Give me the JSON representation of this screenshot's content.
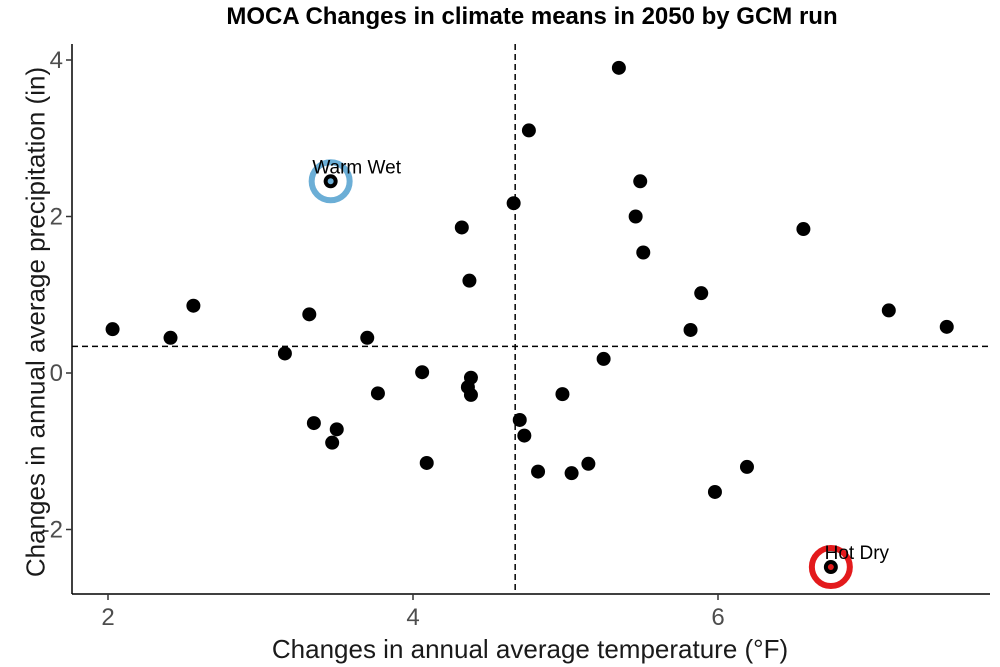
{
  "chart_data": {
    "type": "scatter",
    "title": "MOCA Changes in climate means in 2050 by GCM run",
    "xlabel": "Changes in annual average temperature (°F)",
    "ylabel": "Changes in annual average precipitation (in)",
    "xlim": [
      1.85,
      7.7
    ],
    "ylim": [
      -2.8,
      4.25
    ],
    "xticks": [
      2,
      4,
      6
    ],
    "yticks": [
      -2,
      0,
      2,
      4
    ],
    "grid": false,
    "reference_lines": {
      "x": 4.67,
      "y": 0.34
    },
    "point_color": "#000000",
    "points": [
      {
        "x": 2.03,
        "y": 0.56
      },
      {
        "x": 2.41,
        "y": 0.45
      },
      {
        "x": 2.56,
        "y": 0.86
      },
      {
        "x": 3.16,
        "y": 0.25
      },
      {
        "x": 3.32,
        "y": 0.75
      },
      {
        "x": 3.35,
        "y": -0.64
      },
      {
        "x": 3.47,
        "y": -0.89
      },
      {
        "x": 3.5,
        "y": -0.72
      },
      {
        "x": 3.46,
        "y": 2.45
      },
      {
        "x": 3.7,
        "y": 0.45
      },
      {
        "x": 3.77,
        "y": -0.26
      },
      {
        "x": 4.06,
        "y": 0.01
      },
      {
        "x": 4.09,
        "y": -1.15
      },
      {
        "x": 4.32,
        "y": 1.86
      },
      {
        "x": 4.36,
        "y": -0.18
      },
      {
        "x": 4.37,
        "y": 1.18
      },
      {
        "x": 4.38,
        "y": -0.06
      },
      {
        "x": 4.38,
        "y": -0.28
      },
      {
        "x": 4.66,
        "y": 2.17
      },
      {
        "x": 4.7,
        "y": -0.6
      },
      {
        "x": 4.73,
        "y": -0.8
      },
      {
        "x": 4.76,
        "y": 3.1
      },
      {
        "x": 4.82,
        "y": -1.26
      },
      {
        "x": 4.98,
        "y": -0.27
      },
      {
        "x": 5.04,
        "y": -1.28
      },
      {
        "x": 5.15,
        "y": -1.16
      },
      {
        "x": 5.25,
        "y": 0.18
      },
      {
        "x": 5.35,
        "y": 3.9
      },
      {
        "x": 5.46,
        "y": 2.0
      },
      {
        "x": 5.49,
        "y": 2.45
      },
      {
        "x": 5.51,
        "y": 1.54
      },
      {
        "x": 5.82,
        "y": 0.55
      },
      {
        "x": 5.89,
        "y": 1.02
      },
      {
        "x": 5.98,
        "y": -1.52
      },
      {
        "x": 6.19,
        "y": -1.2
      },
      {
        "x": 6.56,
        "y": 1.84
      },
      {
        "x": 6.74,
        "y": -2.48
      },
      {
        "x": 7.12,
        "y": 0.8
      },
      {
        "x": 7.5,
        "y": 0.59
      }
    ],
    "highlights": [
      {
        "label": "Warm Wet",
        "x": 3.46,
        "y": 2.45,
        "color": "#6baed6"
      },
      {
        "label": "Hot Dry",
        "x": 6.74,
        "y": -2.48,
        "color": "#e31a1c"
      }
    ]
  }
}
